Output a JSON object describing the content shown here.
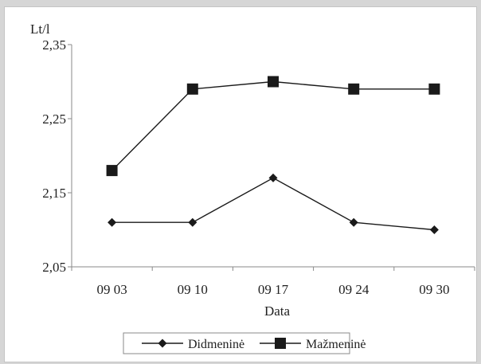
{
  "chart_data": {
    "type": "line",
    "title": "",
    "xlabel": "Data",
    "ylabel": "Lt/l",
    "categories": [
      "09 03",
      "09 10",
      "09 17",
      "09 24",
      "09 30"
    ],
    "ylim": [
      2.05,
      2.35
    ],
    "yticks": [
      2.05,
      2.15,
      2.25,
      2.35
    ],
    "ytick_labels": [
      "2,05",
      "2,15",
      "2,25",
      "2,35"
    ],
    "grid": false,
    "legend_position": "bottom",
    "series": [
      {
        "name": "Didmeninė",
        "marker": "diamond",
        "color": "#1a1a1a",
        "values": [
          2.11,
          2.11,
          2.17,
          2.11,
          2.1
        ]
      },
      {
        "name": "Mažmeninė",
        "marker": "square",
        "color": "#1a1a1a",
        "values": [
          2.18,
          2.29,
          2.3,
          2.29,
          2.29
        ]
      }
    ]
  }
}
